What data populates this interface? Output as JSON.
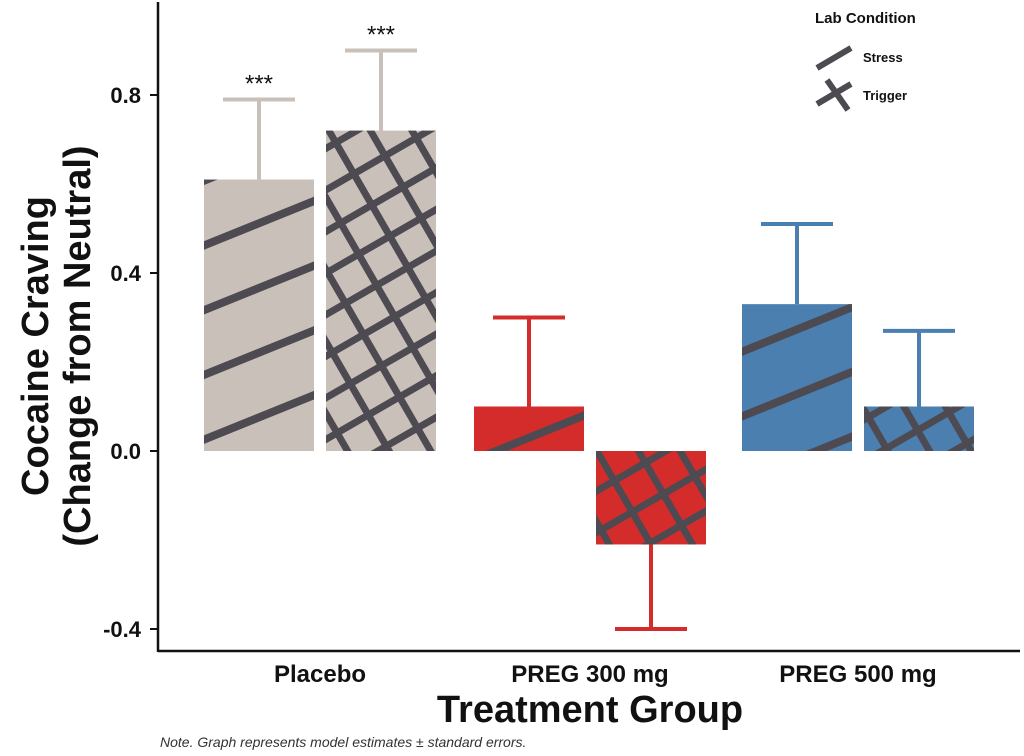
{
  "chart_data": {
    "type": "bar",
    "categories": [
      "Placebo",
      "PREG 300 mg",
      "PREG 500 mg"
    ],
    "category_colors": [
      "#c9c0b9",
      "#d42b2b",
      "#4a7fb0"
    ],
    "errorbar_colors": [
      "#c9c0b9",
      "#d42b2b",
      "#4a7fb0"
    ],
    "series": [
      {
        "name": "Stress",
        "pattern": "diagonal",
        "values": [
          0.61,
          0.1,
          0.33
        ],
        "errors": [
          0.18,
          0.2,
          0.18
        ],
        "significance": [
          "***",
          "",
          ""
        ]
      },
      {
        "name": "Trigger",
        "pattern": "crosshatch",
        "values": [
          0.72,
          -0.21,
          0.1
        ],
        "errors": [
          0.18,
          0.19,
          0.17
        ],
        "significance": [
          "***",
          "",
          ""
        ]
      }
    ],
    "ylim": [
      -0.44,
      0.99
    ],
    "yticks": [
      "0.8",
      "0.4",
      "0.0",
      "-0.4"
    ],
    "ytick_values": [
      0.8,
      0.4,
      0.0,
      -0.4
    ],
    "ylabel_line1": "Cocaine Craving",
    "ylabel_line2": "(Change from Neutral)",
    "xlabel": "Treatment Group",
    "legend": {
      "title": "Lab Condition",
      "items": [
        "Stress",
        "Trigger"
      ],
      "position": "top-right"
    },
    "hatch_color": "#4d4a52",
    "note": "Note. Graph represents model estimates ± standard errors."
  }
}
